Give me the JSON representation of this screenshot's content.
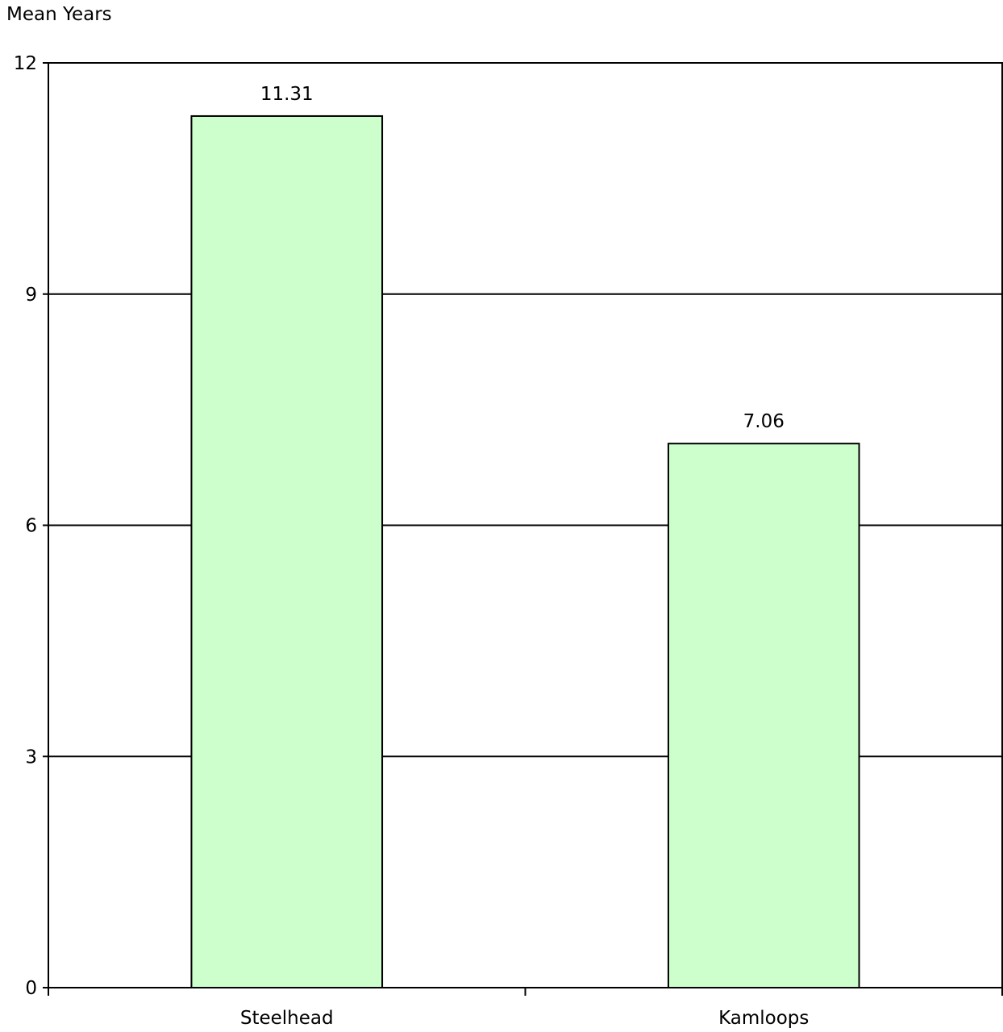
{
  "chart_data": {
    "type": "bar",
    "title": "",
    "ylabel": "Mean Years",
    "xlabel": "",
    "categories": [
      "Steelhead",
      "Kamloops"
    ],
    "values": [
      11.31,
      7.06
    ],
    "data_labels": [
      "11.31",
      "7.06"
    ],
    "ylim": [
      0,
      12
    ],
    "yticks": [
      0,
      3,
      6,
      9,
      12
    ],
    "ytick_labels": [
      "0",
      "3",
      "6",
      "9",
      "12"
    ],
    "grid": "horizontal",
    "legend": "none",
    "colors": {
      "bar_fill": "#ccffcc",
      "bar_stroke": "#000000",
      "grid": "#000000",
      "axis": "#000000",
      "background": "#ffffff"
    }
  }
}
